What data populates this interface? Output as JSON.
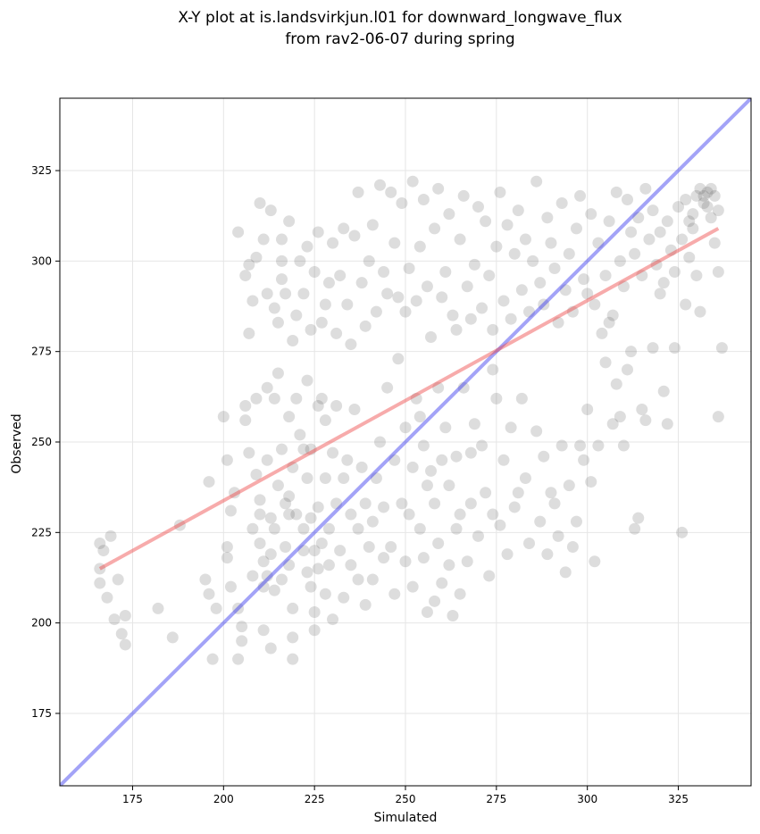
{
  "figure": {
    "title_line1": "X-Y plot at is.landsvirkjun.l01 for downward_longwave_flux",
    "title_line2": "from rav2-06-07 during spring"
  },
  "chart_data": {
    "type": "scatter",
    "xlabel": "Simulated",
    "ylabel": "Observed",
    "xlim": [
      155,
      345
    ],
    "ylim": [
      155,
      345
    ],
    "xticks": [
      175,
      200,
      225,
      250,
      275,
      300,
      325
    ],
    "yticks": [
      175,
      200,
      225,
      250,
      275,
      300,
      325
    ],
    "grid": true,
    "point_color": "#555555",
    "point_opacity": 0.2,
    "reference_lines": [
      {
        "kind": "one_to_one",
        "color": "#3333ee",
        "x": [
          155,
          345
        ],
        "y": [
          155,
          345
        ]
      },
      {
        "kind": "fit",
        "color": "#ee4444",
        "x": [
          166,
          336
        ],
        "y": [
          215,
          309
        ]
      }
    ],
    "points": [
      [
        166,
        222
      ],
      [
        166,
        215
      ],
      [
        166,
        211
      ],
      [
        167,
        220
      ],
      [
        168,
        207
      ],
      [
        169,
        224
      ],
      [
        170,
        201
      ],
      [
        171,
        212
      ],
      [
        172,
        197
      ],
      [
        173,
        194
      ],
      [
        173,
        202
      ],
      [
        182,
        204
      ],
      [
        186,
        196
      ],
      [
        188,
        227
      ],
      [
        195,
        212
      ],
      [
        196,
        239
      ],
      [
        196,
        208
      ],
      [
        197,
        190
      ],
      [
        198,
        204
      ],
      [
        200,
        257
      ],
      [
        201,
        245
      ],
      [
        201,
        221
      ],
      [
        201,
        218
      ],
      [
        202,
        210
      ],
      [
        202,
        231
      ],
      [
        203,
        236
      ],
      [
        204,
        204
      ],
      [
        204,
        190
      ],
      [
        205,
        199
      ],
      [
        205,
        195
      ],
      [
        206,
        260
      ],
      [
        206,
        256
      ],
      [
        207,
        280
      ],
      [
        207,
        247
      ],
      [
        208,
        226
      ],
      [
        208,
        213
      ],
      [
        209,
        241
      ],
      [
        209,
        262
      ],
      [
        210,
        230
      ],
      [
        210,
        222
      ],
      [
        210,
        234
      ],
      [
        211,
        217
      ],
      [
        211,
        210
      ],
      [
        211,
        198
      ],
      [
        212,
        213
      ],
      [
        212,
        245
      ],
      [
        212,
        265
      ],
      [
        213,
        229
      ],
      [
        213,
        219
      ],
      [
        213,
        193
      ],
      [
        214,
        209
      ],
      [
        214,
        226
      ],
      [
        214,
        262
      ],
      [
        215,
        269
      ],
      [
        215,
        238
      ],
      [
        216,
        300
      ],
      [
        216,
        295
      ],
      [
        216,
        248
      ],
      [
        216,
        212
      ],
      [
        217,
        221
      ],
      [
        217,
        233
      ],
      [
        218,
        235
      ],
      [
        218,
        230
      ],
      [
        218,
        216
      ],
      [
        218,
        257
      ],
      [
        219,
        243
      ],
      [
        219,
        204
      ],
      [
        219,
        196
      ],
      [
        219,
        190
      ],
      [
        220,
        230
      ],
      [
        220,
        262
      ],
      [
        221,
        252
      ],
      [
        222,
        248
      ],
      [
        222,
        226
      ],
      [
        222,
        220
      ],
      [
        223,
        267
      ],
      [
        223,
        240
      ],
      [
        223,
        214
      ],
      [
        224,
        248
      ],
      [
        224,
        229
      ],
      [
        224,
        210
      ],
      [
        225,
        203
      ],
      [
        225,
        198
      ],
      [
        225,
        220
      ],
      [
        226,
        260
      ],
      [
        226,
        232
      ],
      [
        226,
        215
      ],
      [
        227,
        262
      ],
      [
        227,
        222
      ],
      [
        228,
        256
      ],
      [
        228,
        240
      ],
      [
        228,
        208
      ],
      [
        229,
        226
      ],
      [
        229,
        216
      ],
      [
        230,
        247
      ],
      [
        230,
        201
      ],
      [
        231,
        233
      ],
      [
        231,
        260
      ],
      [
        232,
        220
      ],
      [
        233,
        207
      ],
      [
        233,
        240
      ],
      [
        234,
        245
      ],
      [
        235,
        230
      ],
      [
        235,
        216
      ],
      [
        236,
        259
      ],
      [
        237,
        226
      ],
      [
        237,
        212
      ],
      [
        238,
        243
      ],
      [
        239,
        233
      ],
      [
        239,
        205
      ],
      [
        240,
        221
      ],
      [
        241,
        228
      ],
      [
        241,
        212
      ],
      [
        242,
        240
      ],
      [
        243,
        250
      ],
      [
        244,
        218
      ],
      [
        244,
        232
      ],
      [
        245,
        265
      ],
      [
        246,
        221
      ],
      [
        247,
        245
      ],
      [
        247,
        208
      ],
      [
        248,
        273
      ],
      [
        249,
        233
      ],
      [
        250,
        254
      ],
      [
        250,
        217
      ],
      [
        251,
        230
      ],
      [
        252,
        210
      ],
      [
        252,
        243
      ],
      [
        253,
        262
      ],
      [
        254,
        257
      ],
      [
        254,
        226
      ],
      [
        255,
        249
      ],
      [
        255,
        218
      ],
      [
        256,
        238
      ],
      [
        256,
        203
      ],
      [
        257,
        242
      ],
      [
        258,
        233
      ],
      [
        258,
        206
      ],
      [
        259,
        265
      ],
      [
        259,
        222
      ],
      [
        260,
        245
      ],
      [
        260,
        211
      ],
      [
        261,
        254
      ],
      [
        262,
        238
      ],
      [
        262,
        216
      ],
      [
        263,
        202
      ],
      [
        264,
        226
      ],
      [
        264,
        246
      ],
      [
        265,
        230
      ],
      [
        265,
        208
      ],
      [
        266,
        265
      ],
      [
        267,
        217
      ],
      [
        268,
        247
      ],
      [
        268,
        233
      ],
      [
        269,
        255
      ],
      [
        270,
        224
      ],
      [
        271,
        249
      ],
      [
        272,
        236
      ],
      [
        273,
        213
      ],
      [
        274,
        270
      ],
      [
        274,
        230
      ],
      [
        275,
        262
      ],
      [
        276,
        227
      ],
      [
        277,
        245
      ],
      [
        278,
        219
      ],
      [
        279,
        254
      ],
      [
        280,
        232
      ],
      [
        281,
        236
      ],
      [
        282,
        262
      ],
      [
        283,
        240
      ],
      [
        284,
        222
      ],
      [
        286,
        253
      ],
      [
        287,
        228
      ],
      [
        288,
        246
      ],
      [
        289,
        219
      ],
      [
        290,
        236
      ],
      [
        291,
        233
      ],
      [
        292,
        224
      ],
      [
        293,
        249
      ],
      [
        294,
        214
      ],
      [
        295,
        238
      ],
      [
        296,
        221
      ],
      [
        297,
        228
      ],
      [
        298,
        249
      ],
      [
        299,
        245
      ],
      [
        300,
        259
      ],
      [
        301,
        239
      ],
      [
        302,
        217
      ],
      [
        303,
        249
      ],
      [
        305,
        272
      ],
      [
        306,
        283
      ],
      [
        307,
        255
      ],
      [
        308,
        266
      ],
      [
        309,
        257
      ],
      [
        310,
        249
      ],
      [
        311,
        270
      ],
      [
        312,
        275
      ],
      [
        313,
        226
      ],
      [
        314,
        229
      ],
      [
        315,
        259
      ],
      [
        316,
        256
      ],
      [
        318,
        276
      ],
      [
        320,
        291
      ],
      [
        321,
        264
      ],
      [
        322,
        255
      ],
      [
        324,
        276
      ],
      [
        326,
        225
      ],
      [
        327,
        288
      ],
      [
        328,
        301
      ],
      [
        329,
        309
      ],
      [
        330,
        296
      ],
      [
        331,
        286
      ],
      [
        332,
        318
      ],
      [
        333,
        315
      ],
      [
        334,
        312
      ],
      [
        335,
        305
      ],
      [
        336,
        297
      ],
      [
        336,
        257
      ],
      [
        337,
        276
      ],
      [
        204,
        308
      ],
      [
        206,
        296
      ],
      [
        207,
        299
      ],
      [
        208,
        289
      ],
      [
        209,
        301
      ],
      [
        210,
        316
      ],
      [
        211,
        306
      ],
      [
        212,
        291
      ],
      [
        213,
        314
      ],
      [
        214,
        287
      ],
      [
        215,
        283
      ],
      [
        216,
        306
      ],
      [
        217,
        291
      ],
      [
        218,
        311
      ],
      [
        219,
        278
      ],
      [
        220,
        285
      ],
      [
        221,
        300
      ],
      [
        222,
        291
      ],
      [
        223,
        304
      ],
      [
        224,
        281
      ],
      [
        225,
        297
      ],
      [
        226,
        308
      ],
      [
        227,
        283
      ],
      [
        228,
        288
      ],
      [
        229,
        294
      ],
      [
        230,
        305
      ],
      [
        231,
        280
      ],
      [
        232,
        296
      ],
      [
        233,
        309
      ],
      [
        234,
        288
      ],
      [
        235,
        277
      ],
      [
        236,
        307
      ],
      [
        237,
        319
      ],
      [
        238,
        294
      ],
      [
        239,
        282
      ],
      [
        240,
        300
      ],
      [
        241,
        310
      ],
      [
        242,
        286
      ],
      [
        243,
        321
      ],
      [
        244,
        297
      ],
      [
        245,
        291
      ],
      [
        246,
        319
      ],
      [
        247,
        305
      ],
      [
        248,
        290
      ],
      [
        249,
        316
      ],
      [
        250,
        286
      ],
      [
        251,
        298
      ],
      [
        252,
        322
      ],
      [
        253,
        289
      ],
      [
        254,
        304
      ],
      [
        255,
        317
      ],
      [
        256,
        293
      ],
      [
        257,
        279
      ],
      [
        258,
        309
      ],
      [
        259,
        320
      ],
      [
        260,
        290
      ],
      [
        261,
        297
      ],
      [
        262,
        313
      ],
      [
        263,
        285
      ],
      [
        264,
        281
      ],
      [
        265,
        306
      ],
      [
        266,
        318
      ],
      [
        267,
        293
      ],
      [
        268,
        284
      ],
      [
        269,
        299
      ],
      [
        270,
        315
      ],
      [
        271,
        287
      ],
      [
        272,
        311
      ],
      [
        273,
        296
      ],
      [
        274,
        281
      ],
      [
        275,
        304
      ],
      [
        276,
        319
      ],
      [
        277,
        289
      ],
      [
        278,
        310
      ],
      [
        279,
        284
      ],
      [
        280,
        302
      ],
      [
        281,
        314
      ],
      [
        282,
        292
      ],
      [
        283,
        306
      ],
      [
        284,
        286
      ],
      [
        285,
        300
      ],
      [
        286,
        322
      ],
      [
        287,
        294
      ],
      [
        288,
        288
      ],
      [
        289,
        312
      ],
      [
        290,
        305
      ],
      [
        291,
        298
      ],
      [
        292,
        283
      ],
      [
        293,
        316
      ],
      [
        294,
        292
      ],
      [
        295,
        302
      ],
      [
        296,
        286
      ],
      [
        297,
        309
      ],
      [
        298,
        318
      ],
      [
        299,
        295
      ],
      [
        300,
        291
      ],
      [
        301,
        313
      ],
      [
        302,
        288
      ],
      [
        303,
        305
      ],
      [
        304,
        280
      ],
      [
        305,
        296
      ],
      [
        306,
        311
      ],
      [
        307,
        285
      ],
      [
        308,
        319
      ],
      [
        309,
        300
      ],
      [
        310,
        293
      ],
      [
        311,
        317
      ],
      [
        312,
        308
      ],
      [
        313,
        302
      ],
      [
        314,
        312
      ],
      [
        315,
        296
      ],
      [
        316,
        320
      ],
      [
        317,
        306
      ],
      [
        318,
        314
      ],
      [
        319,
        299
      ],
      [
        320,
        308
      ],
      [
        321,
        294
      ],
      [
        322,
        311
      ],
      [
        323,
        303
      ],
      [
        324,
        297
      ],
      [
        325,
        315
      ],
      [
        326,
        306
      ],
      [
        327,
        317
      ],
      [
        328,
        311
      ],
      [
        329,
        313
      ],
      [
        330,
        318
      ],
      [
        331,
        320
      ],
      [
        332,
        316
      ],
      [
        333,
        319
      ],
      [
        334,
        320
      ],
      [
        335,
        318
      ],
      [
        336,
        314
      ]
    ]
  }
}
